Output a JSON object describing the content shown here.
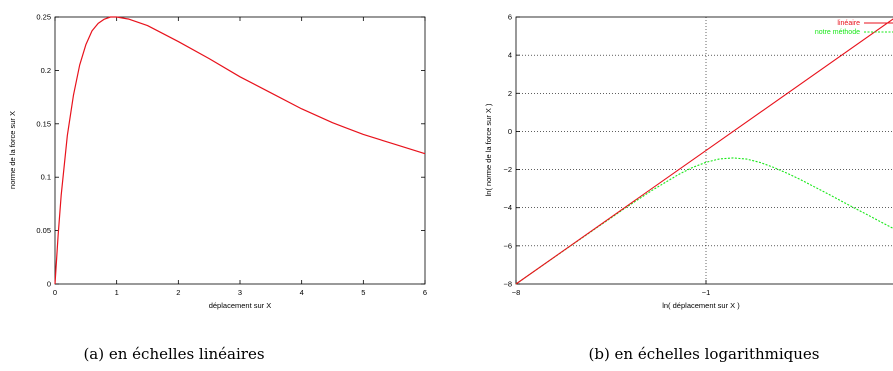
{
  "colors": {
    "red": "#e8121c",
    "green": "#18e818",
    "axis": "#000000",
    "grid": "#000000"
  },
  "chart_data": [
    {
      "type": "line",
      "title": "",
      "caption": "(a) en échelles linéaires",
      "xlabel": "déplacement sur X",
      "ylabel": "norme de la force sur X",
      "xlim": [
        0,
        6
      ],
      "ylim": [
        0,
        0.25
      ],
      "xticks": [
        "0",
        "1",
        "2",
        "3",
        "4",
        "5",
        "6"
      ],
      "yticks": [
        "0",
        "0.05",
        "0.1",
        "0.15",
        "0.2",
        "0.25"
      ],
      "grid": false,
      "series": [
        {
          "color": "#e8121c",
          "x": [
            0,
            0.05,
            0.1,
            0.2,
            0.3,
            0.4,
            0.5,
            0.6,
            0.7,
            0.8,
            0.9,
            1.0,
            1.2,
            1.5,
            2.0,
            2.5,
            3.0,
            3.5,
            4.0,
            4.5,
            5.0,
            5.5,
            6.0
          ],
          "y": [
            0,
            0.045,
            0.083,
            0.139,
            0.177,
            0.205,
            0.224,
            0.237,
            0.244,
            0.248,
            0.25,
            0.25,
            0.248,
            0.242,
            0.227,
            0.211,
            0.194,
            0.179,
            0.164,
            0.151,
            0.14,
            0.131,
            0.122
          ]
        }
      ]
    },
    {
      "type": "line",
      "title": "",
      "caption": "(b) en échelles logarithmiques",
      "xlabel": "ln( déplacement sur X )",
      "ylabel": "ln( norme de la force sur X )",
      "xlim": [
        -8,
        6
      ],
      "ylim": [
        -8,
        6
      ],
      "xticks": [
        "−8",
        "−1"
      ],
      "yticks": [
        "6",
        "4",
        "2",
        "0",
        "−2",
        "−4",
        "−6",
        "−8"
      ],
      "grid": true,
      "legend_position": "top-right",
      "series": [
        {
          "name": "linéaire",
          "color": "#e8121c",
          "style": "solid",
          "x": [
            -8,
            6
          ],
          "y": [
            -8,
            6
          ]
        },
        {
          "name": "notre méthode",
          "color": "#18e818",
          "style": "dashed",
          "x": [
            -8,
            -6,
            -4,
            -3,
            -2,
            -1.5,
            -1,
            -0.5,
            0,
            0.5,
            1,
            1.5,
            2,
            2.5,
            3,
            3.5,
            4,
            4.5,
            5,
            5.5,
            6
          ],
          "y": [
            -8,
            -6.01,
            -4.04,
            -3.1,
            -2.25,
            -1.89,
            -1.62,
            -1.44,
            -1.39,
            -1.45,
            -1.63,
            -1.89,
            -2.2,
            -2.54,
            -2.91,
            -3.28,
            -3.66,
            -4.04,
            -4.41,
            -4.79,
            -5.16
          ]
        }
      ]
    }
  ]
}
